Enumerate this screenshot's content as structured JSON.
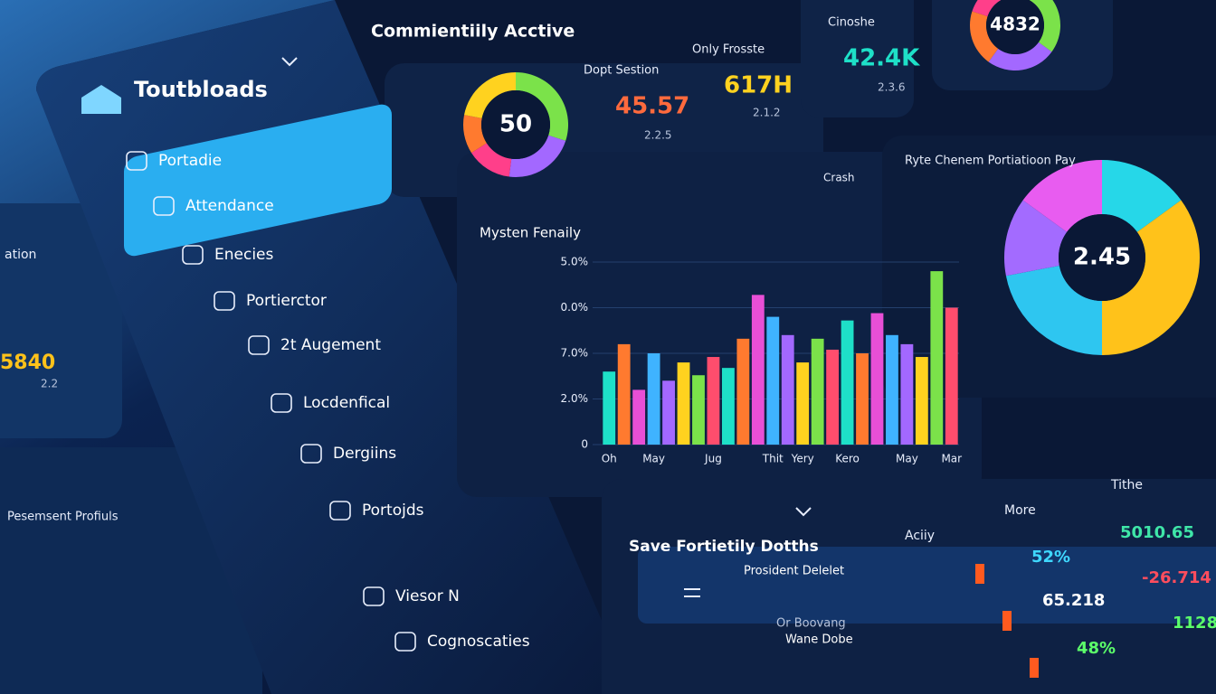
{
  "sidebar": {
    "brand": "Toutbloads",
    "items": [
      "Portadie",
      "Attendance",
      "Enecies",
      "Portierctor",
      "2t Augement",
      "Locdenfical",
      "Dergiins",
      "Portojds",
      "Viesor N",
      "Cognoscaties"
    ]
  },
  "header": {
    "title": "Commientiily Acctive"
  },
  "stats": [
    {
      "label": "Dopt Sestion",
      "value": "45.57",
      "sub": "2.2.5"
    },
    {
      "label": "Only Frosste",
      "value": "617H",
      "sub": "2.1.2"
    },
    {
      "label": "Cinoshe",
      "value": "42.4K",
      "sub": "2.3.6"
    }
  ],
  "left_panel": {
    "label": "ation",
    "value": "5840",
    "sub": "2.2",
    "caption": "Pesemsent Profiuls"
  },
  "chart_data": [
    {
      "type": "donut",
      "center_label": "50",
      "values": [
        30,
        22,
        14,
        12,
        22
      ],
      "colors": [
        "#7be24a",
        "#a368ff",
        "#ff3f8a",
        "#ff7a2f",
        "#ffd21f"
      ]
    },
    {
      "type": "bar",
      "title": "Mysten Fenaily",
      "corner_label": "Crash",
      "categories": [
        "Oh",
        null,
        null,
        "May",
        null,
        null,
        null,
        "Jug",
        null,
        null,
        null,
        "Thit",
        null,
        "Yery",
        null,
        null,
        "Kero",
        null,
        null,
        null,
        "May",
        null,
        null,
        "Mar"
      ],
      "values": [
        40,
        55,
        30,
        50,
        35,
        45,
        38,
        48,
        42,
        58,
        82,
        70,
        60,
        45,
        58,
        52,
        68,
        50,
        72,
        60,
        55,
        48,
        95,
        75
      ],
      "colors": [
        "#1ee0c8",
        "#ff7a2f",
        "#e84fd6",
        "#3fb3ff",
        "#a368ff",
        "#ffd21f",
        "#7be24a",
        "#ff4d6d"
      ],
      "ylim": [
        0,
        100
      ],
      "yticks": [
        0,
        {
          "value": 25,
          "label": "2.0%"
        },
        {
          "value": 50,
          "label": "7.0%"
        },
        {
          "value": 75,
          "label": "0.0%"
        },
        {
          "value": 100,
          "label": "5.0%"
        }
      ]
    },
    {
      "type": "donut",
      "title": "Ryte Chenem Portiatioon Pay",
      "center_label": "2.45",
      "values": [
        15,
        35,
        22,
        13,
        15
      ],
      "colors": [
        "#26d7e8",
        "#ffc21a",
        "#2ec6f0",
        "#a36bff",
        "#e85cf0"
      ]
    },
    {
      "type": "donut",
      "center_label": "4832",
      "values": [
        35,
        25,
        20,
        20
      ],
      "colors": [
        "#7be24a",
        "#a368ff",
        "#ff7a2f",
        "#ff3f8a"
      ]
    }
  ],
  "table": {
    "title": "Save Fortietily Dotths",
    "columns": [
      "Aciiy",
      "More",
      "Tithe"
    ],
    "rows": [
      [
        "Prosident Delelet",
        "52%",
        "5010.65"
      ],
      [
        "Or Boovang",
        "65.218",
        "-26.714"
      ],
      [
        "Wane Dobe",
        "48%",
        "1128.0"
      ]
    ]
  }
}
